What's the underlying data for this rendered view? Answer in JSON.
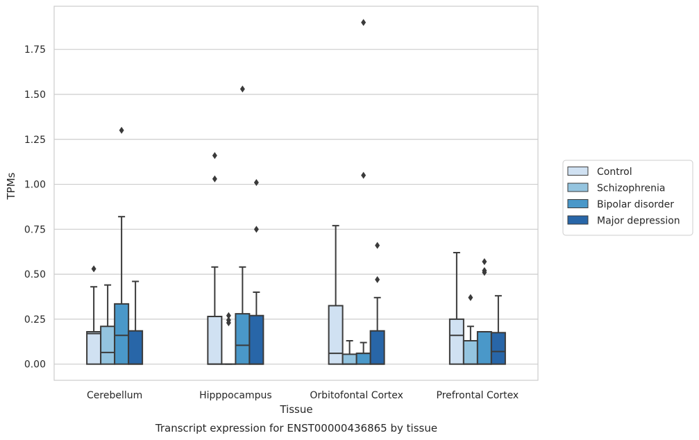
{
  "caption": "Transcript expression for ENST00000436865 by tissue",
  "chart_data": {
    "type": "boxplot",
    "xlabel": "Tissue",
    "ylabel": "TPMs",
    "ylim": [
      -0.09,
      1.99
    ],
    "yticks": [
      0.0,
      0.25,
      0.5,
      0.75,
      1.0,
      1.25,
      1.5,
      1.75
    ],
    "ytick_labels": [
      "0.00",
      "0.25",
      "0.50",
      "0.75",
      "1.00",
      "1.25",
      "1.50",
      "1.75"
    ],
    "grid": "horizontal",
    "legend_position": "right",
    "categories": [
      "Cerebellum",
      "Hipppocampus",
      "Orbitofontal Cortex",
      "Prefrontal Cortex"
    ],
    "series": [
      {
        "name": "Control",
        "color": "#d0e1f2",
        "boxes": [
          {
            "whislo": 0.0,
            "q1": 0.0,
            "med": 0.17,
            "q3": 0.18,
            "whishi": 0.43,
            "fliers": [
              0.53
            ]
          },
          {
            "whislo": 0.0,
            "q1": 0.0,
            "med": 0.0,
            "q3": 0.265,
            "whishi": 0.54,
            "fliers": [
              1.03,
              1.16
            ]
          },
          {
            "whislo": 0.0,
            "q1": 0.0,
            "med": 0.06,
            "q3": 0.325,
            "whishi": 0.77,
            "fliers": []
          },
          {
            "whislo": 0.0,
            "q1": 0.0,
            "med": 0.16,
            "q3": 0.25,
            "whishi": 0.62,
            "fliers": []
          }
        ]
      },
      {
        "name": "Schizophrenia",
        "color": "#94c4df",
        "boxes": [
          {
            "whislo": 0.0,
            "q1": 0.0,
            "med": 0.065,
            "q3": 0.21,
            "whishi": 0.44,
            "fliers": []
          },
          {
            "whislo": 0.0,
            "q1": 0.0,
            "med": 0.0,
            "q3": 0.0,
            "whishi": 0.0,
            "fliers": [
              0.23,
              0.245,
              0.27
            ]
          },
          {
            "whislo": 0.0,
            "q1": 0.0,
            "med": 0.0,
            "q3": 0.055,
            "whishi": 0.13,
            "fliers": []
          },
          {
            "whislo": 0.0,
            "q1": 0.0,
            "med": 0.0,
            "q3": 0.13,
            "whishi": 0.21,
            "fliers": [
              0.37
            ]
          }
        ]
      },
      {
        "name": "Bipolar disorder",
        "color": "#4a98c9",
        "boxes": [
          {
            "whislo": 0.0,
            "q1": 0.0,
            "med": 0.16,
            "q3": 0.335,
            "whishi": 0.82,
            "fliers": [
              1.3
            ]
          },
          {
            "whislo": 0.0,
            "q1": 0.0,
            "med": 0.105,
            "q3": 0.28,
            "whishi": 0.54,
            "fliers": [
              1.53
            ]
          },
          {
            "whislo": 0.0,
            "q1": 0.0,
            "med": 0.06,
            "q3": 0.06,
            "whishi": 0.12,
            "fliers": [
              1.05,
              1.9
            ]
          },
          {
            "whislo": 0.0,
            "q1": 0.0,
            "med": 0.0,
            "q3": 0.18,
            "whishi": 0.18,
            "fliers": [
              0.51,
              0.52,
              0.57
            ]
          }
        ]
      },
      {
        "name": "Major depression",
        "color": "#2866a8",
        "boxes": [
          {
            "whislo": 0.0,
            "q1": 0.0,
            "med": 0.0,
            "q3": 0.185,
            "whishi": 0.46,
            "fliers": []
          },
          {
            "whislo": 0.0,
            "q1": 0.0,
            "med": 0.0,
            "q3": 0.27,
            "whishi": 0.4,
            "fliers": [
              0.75,
              1.01
            ]
          },
          {
            "whislo": 0.0,
            "q1": 0.0,
            "med": 0.0,
            "q3": 0.185,
            "whishi": 0.37,
            "fliers": [
              0.47,
              0.66
            ]
          },
          {
            "whislo": 0.0,
            "q1": 0.0,
            "med": 0.07,
            "q3": 0.175,
            "whishi": 0.38,
            "fliers": []
          }
        ]
      }
    ]
  }
}
